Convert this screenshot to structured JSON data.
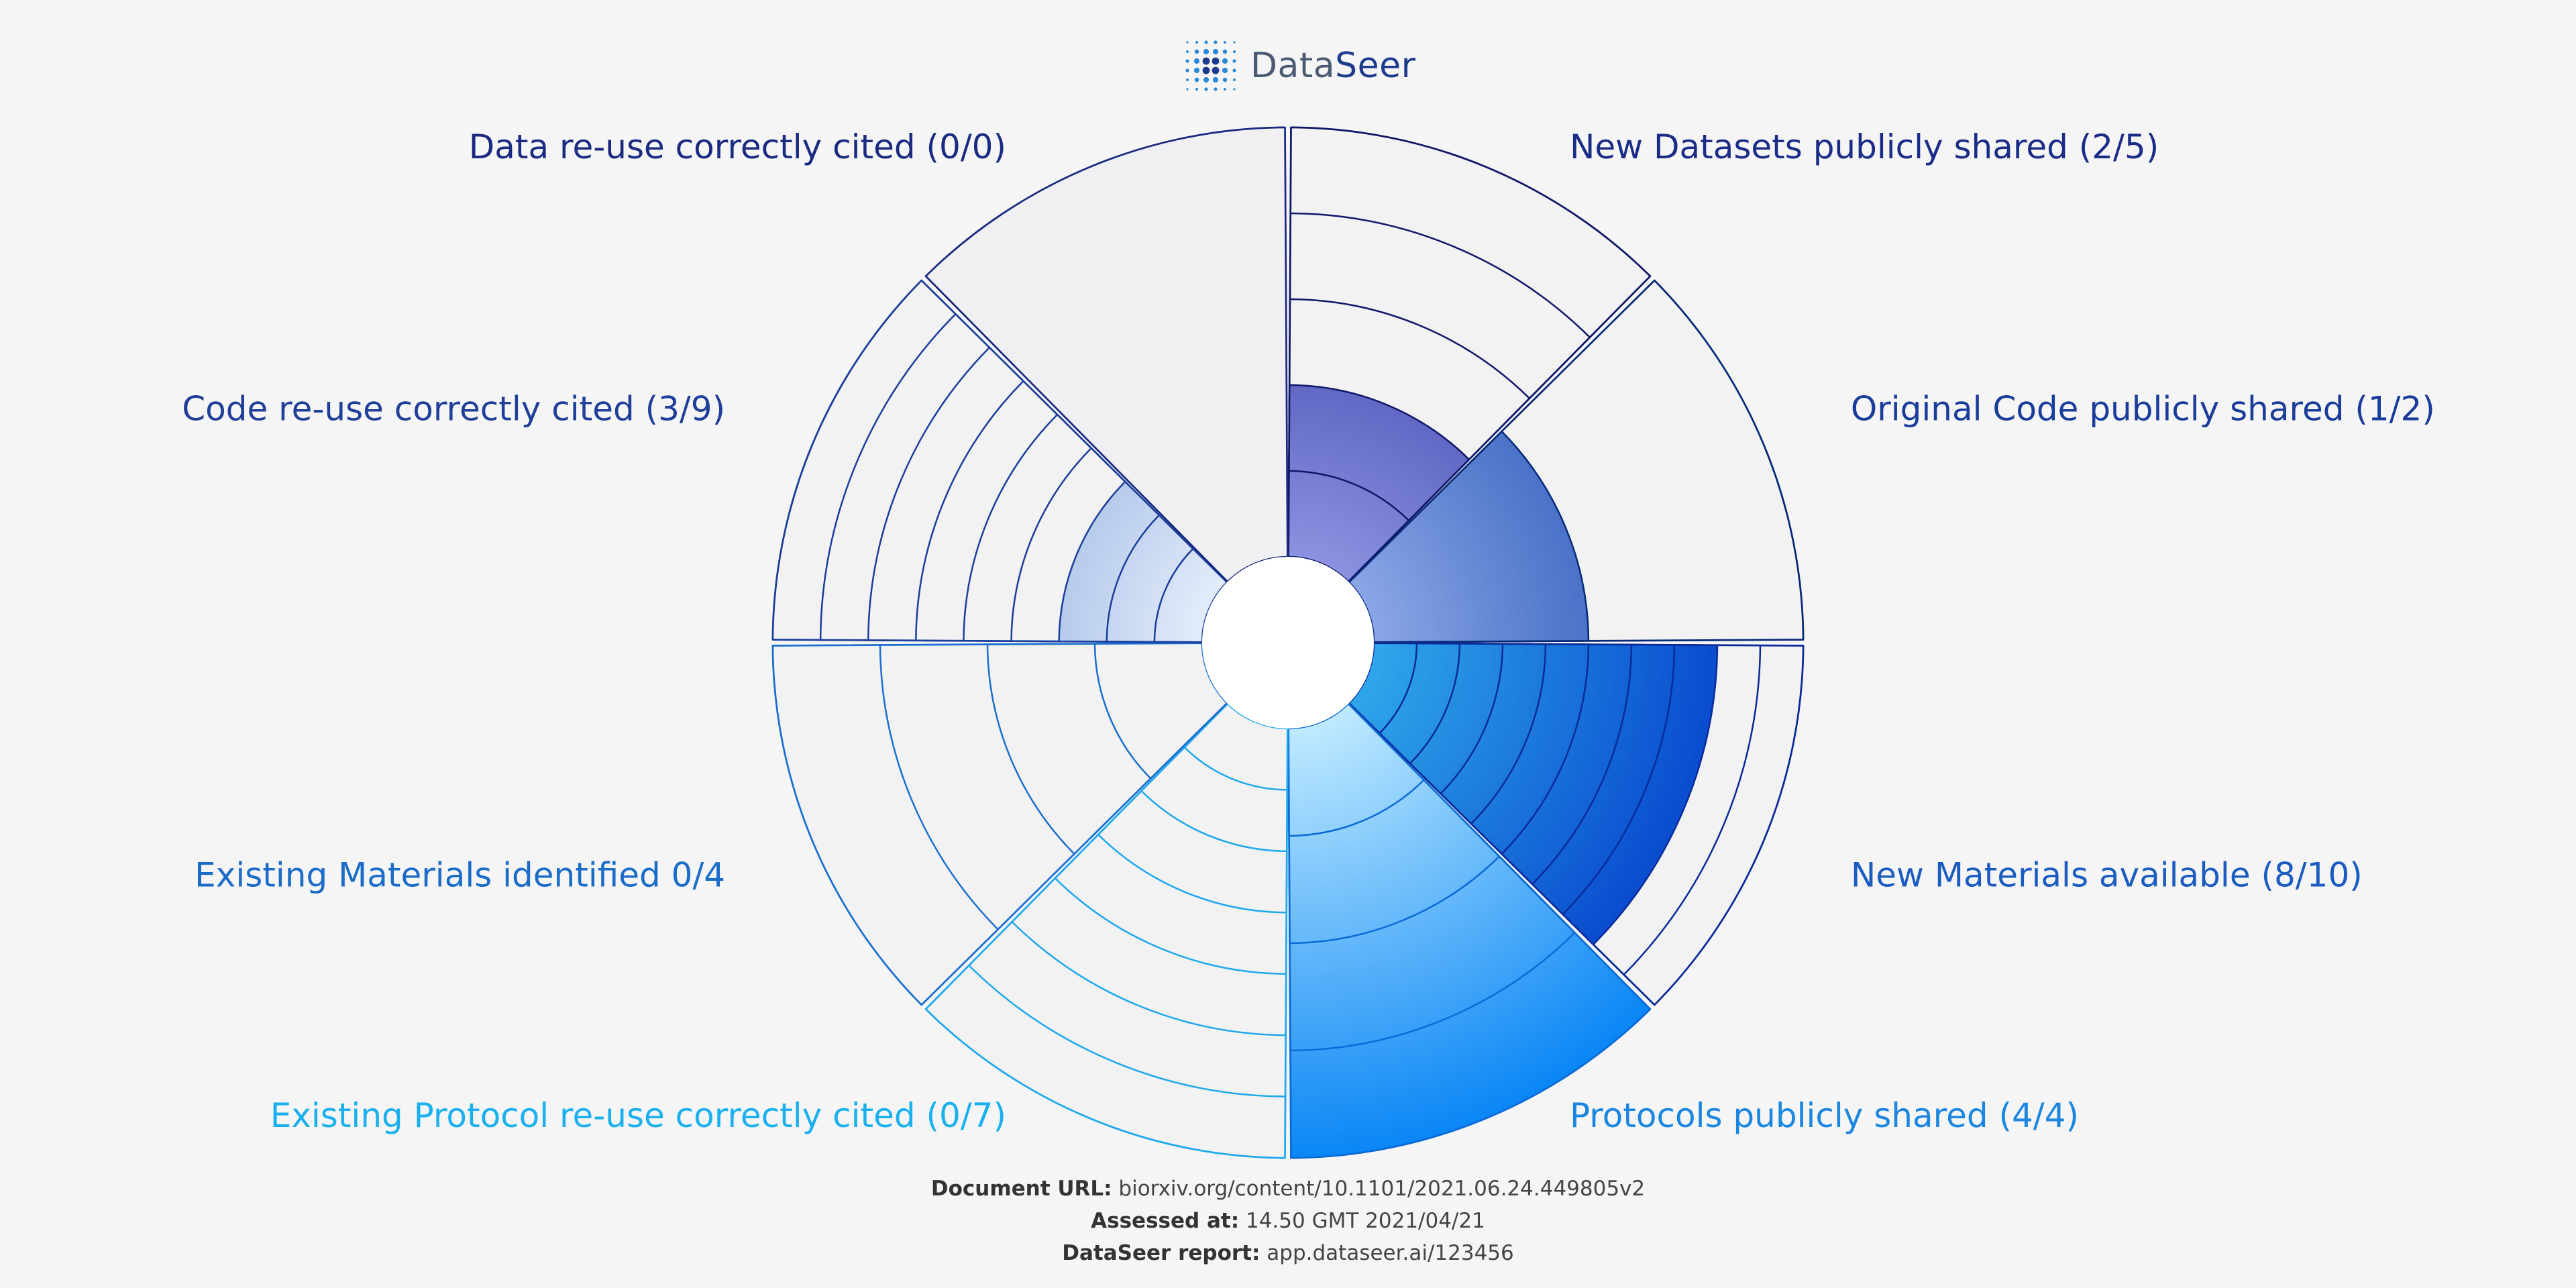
{
  "logo": {
    "name_a": "Data",
    "name_b": "Seer"
  },
  "chart_data": {
    "type": "polar-area",
    "center_radius": 1,
    "segments": [
      {
        "label": "New Datasets publicly shared (2/5)",
        "value": 2,
        "total": 5,
        "color": "#1f2a9b",
        "light": "#8c92e0",
        "stroke": "#10176a",
        "label_color": "#1a2c86"
      },
      {
        "label": "Original Code publicly shared (1/2)",
        "value": 1,
        "total": 2,
        "color": "#0a3ea8",
        "light": "#8aa6e6",
        "stroke": "#062a78",
        "label_color": "#1a3c9a"
      },
      {
        "label": "New Materials available (8/10)",
        "value": 8,
        "total": 10,
        "color": "#0036c8",
        "light": "#2fa6ea",
        "stroke": "#0a2a9a",
        "label_color": "#1a5cc0"
      },
      {
        "label": "Protocols publicly shared (4/4)",
        "value": 4,
        "total": 4,
        "color": "#0a86f5",
        "light": "#bfeaff",
        "stroke": "#0a6ad8",
        "label_color": "#1a86e0"
      },
      {
        "label": "Existing Protocol re-use correctly cited (0/7)",
        "value": 0,
        "total": 7,
        "color": "#1ea8ee",
        "light": "#bfeaff",
        "stroke": "#1ea8ee",
        "label_color": "#1ab0ee"
      },
      {
        "label": "Existing Materials identified 0/4",
        "value": 0,
        "total": 4,
        "color": "#1a6fd0",
        "light": "#aad0f5",
        "stroke": "#1a6fd0",
        "label_color": "#1a6cc8"
      },
      {
        "label": "Code re-use correctly cited (3/9)",
        "value": 3,
        "total": 9,
        "color": "#5f88d0",
        "light": "#e3ecfa",
        "stroke": "#1b3e9c",
        "label_color": "#1f3f98"
      },
      {
        "label": "Data re-use correctly cited (0/0)",
        "value": 0,
        "total": 0,
        "color": "#f0f0f2",
        "light": "#f0f0f2",
        "stroke": "#1a2a80",
        "label_color": "#1a2a80"
      }
    ]
  },
  "meta": {
    "url_label": "Document URL:",
    "url_value": "biorxiv.org/content/10.1101/2021.06.24.449805v2",
    "assessed_label": "Assessed at:",
    "assessed_value": "14.50 GMT 2021/04/21",
    "report_label": "DataSeer report:",
    "report_value": "app.dataseer.ai/123456"
  }
}
